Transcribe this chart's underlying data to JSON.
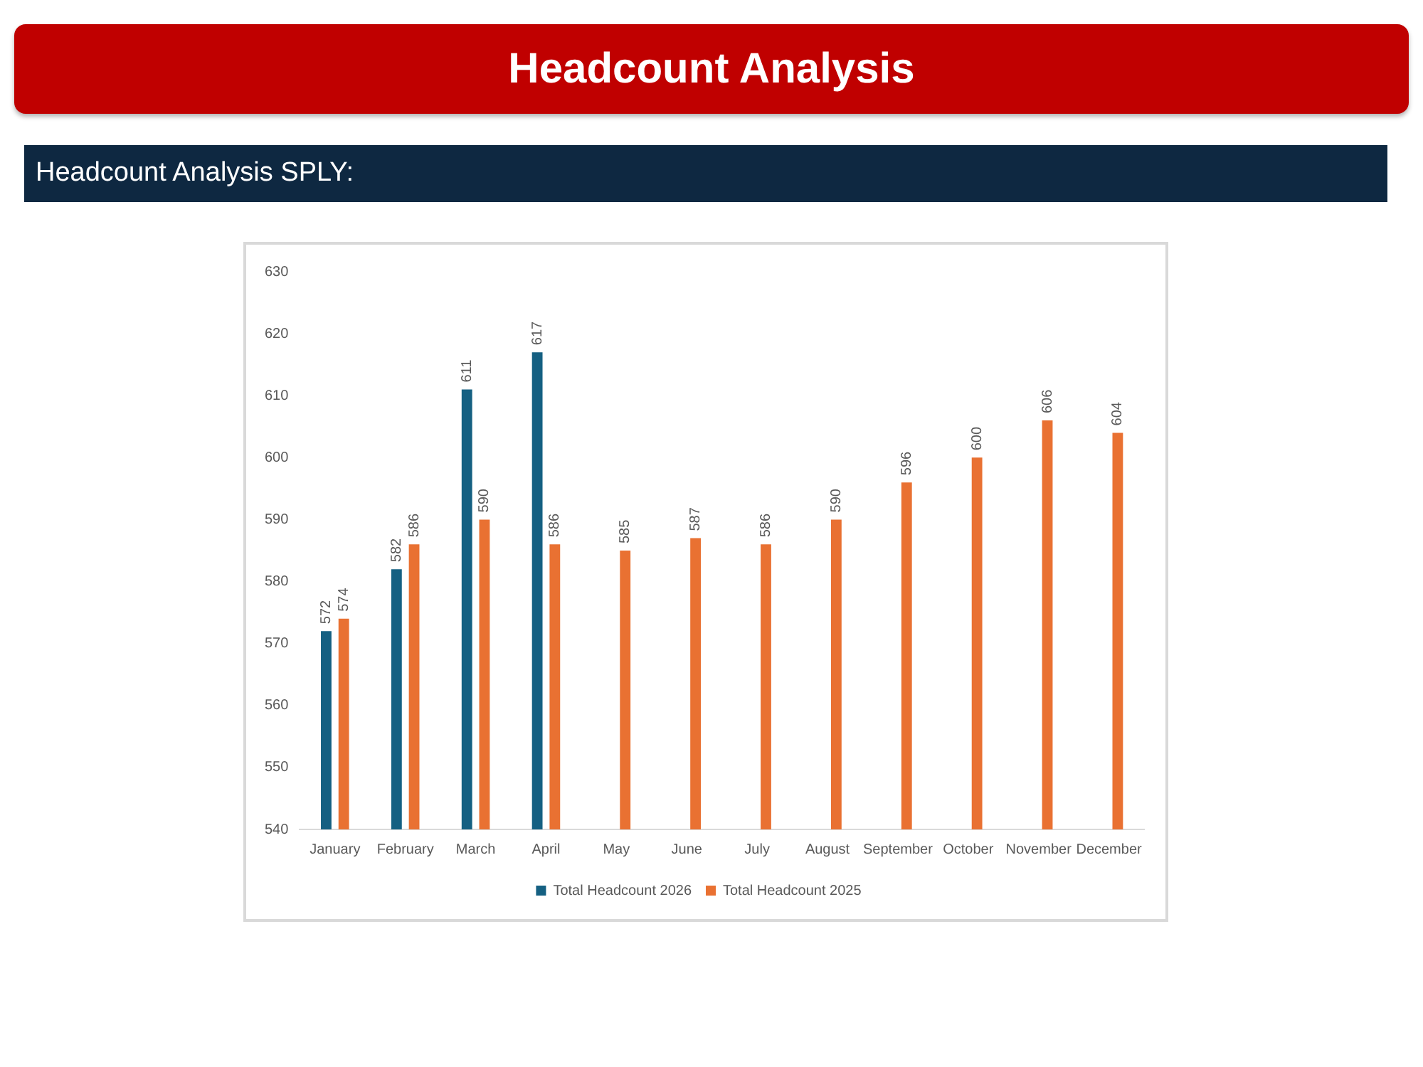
{
  "chart_data": {
    "type": "bar",
    "title": "Headcount Analysis",
    "subtitle": "Headcount Analysis SPLY:",
    "categories": [
      "January",
      "February",
      "March",
      "April",
      "May",
      "June",
      "July",
      "August",
      "September",
      "October",
      "November",
      "December"
    ],
    "series": [
      {
        "name": "Total Headcount 2026",
        "color": "#156082",
        "values": [
          572,
          582,
          611,
          617,
          null,
          null,
          null,
          null,
          null,
          null,
          null,
          null
        ]
      },
      {
        "name": "Total Headcount 2025",
        "color": "#e97132",
        "values": [
          574,
          586,
          590,
          586,
          585,
          587,
          586,
          590,
          596,
          600,
          606,
          604
        ]
      }
    ],
    "ylim": [
      540,
      630
    ],
    "yticks": [
      540,
      550,
      560,
      570,
      580,
      590,
      600,
      610,
      620,
      630
    ],
    "grid": false,
    "legend": "bottom",
    "data_labels": true
  }
}
